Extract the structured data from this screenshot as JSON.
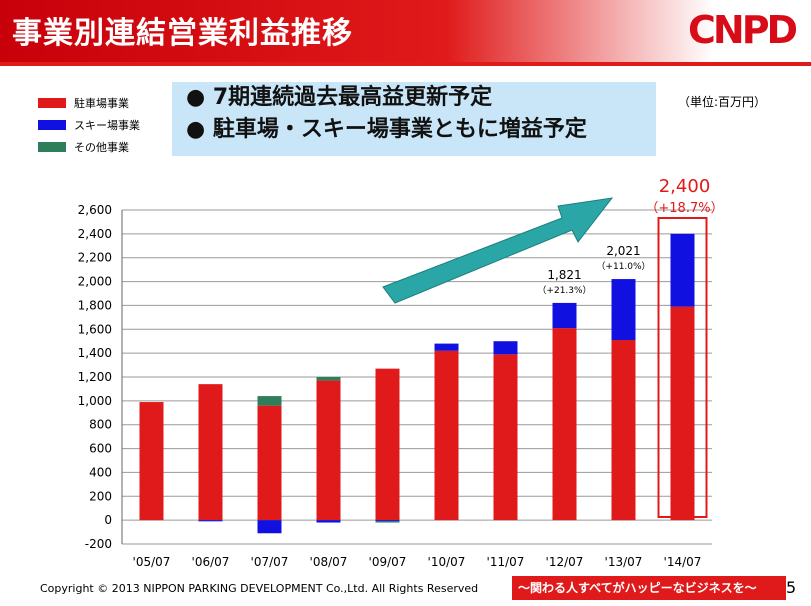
{
  "header": {
    "title": "事業別連結営業利益推移",
    "logo": "CNPD"
  },
  "legend": [
    {
      "label": "駐車場事業",
      "color": "#e01a1a"
    },
    {
      "label": "スキー場事業",
      "color": "#1010e0"
    },
    {
      "label": "その他事業",
      "color": "#2e7d5b"
    }
  ],
  "callout": {
    "line1": "● 7期連続過去最高益更新予定",
    "line2": "● 駐車場・スキー場事業ともに増益予定"
  },
  "unit_label": "（単位:百万円）",
  "chart_data": {
    "type": "bar",
    "stacked": true,
    "categories": [
      "'05/07",
      "'06/07",
      "'07/07",
      "'08/07",
      "'09/07",
      "'10/07",
      "'11/07",
      "'12/07",
      "'13/07",
      "'14/07"
    ],
    "series": [
      {
        "name": "駐車場事業",
        "color": "#e01a1a",
        "values": [
          990,
          1140,
          960,
          1170,
          1270,
          1420,
          1390,
          1610,
          1510,
          1790
        ]
      },
      {
        "name": "スキー場事業",
        "color": "#1010e0",
        "values": [
          0,
          -10,
          -110,
          -20,
          -10,
          60,
          110,
          211,
          511,
          610
        ]
      },
      {
        "name": "その他事業",
        "color": "#2e7d5b",
        "values": [
          0,
          0,
          80,
          30,
          -10,
          0,
          0,
          0,
          0,
          0
        ]
      }
    ],
    "yticks": [
      2600,
      2400,
      2200,
      2000,
      1800,
      1600,
      1400,
      1200,
      1000,
      800,
      600,
      400,
      200,
      0,
      -200
    ],
    "ytick_labels": [
      "2,600",
      "2,400",
      "2,200",
      "2,000",
      "1,800",
      "1,600",
      "1,400",
      "1,200",
      "1,000",
      "800",
      "600",
      "400",
      "200",
      "0",
      "-200"
    ],
    "ylim": [
      -200,
      2600
    ],
    "grid": true,
    "annotations": [
      {
        "category": "'12/07",
        "value": "1,821",
        "growth": "（+21.3%）",
        "emphasis": false
      },
      {
        "category": "'13/07",
        "value": "2,021",
        "growth": "（+11.0%）",
        "emphasis": false
      },
      {
        "category": "'14/07",
        "value": "2,400",
        "growth": "（+18.7%）",
        "emphasis": true
      }
    ],
    "highlight_category": "'14/07",
    "trend_arrow": true
  },
  "footer": {
    "copyright": "Copyright © 2013 NIPPON PARKING DEVELOPMENT Co.,Ltd. All Rights Reserved",
    "tagline": "～関わる人すべてがハッピーなビジネスを～",
    "page": "5"
  }
}
